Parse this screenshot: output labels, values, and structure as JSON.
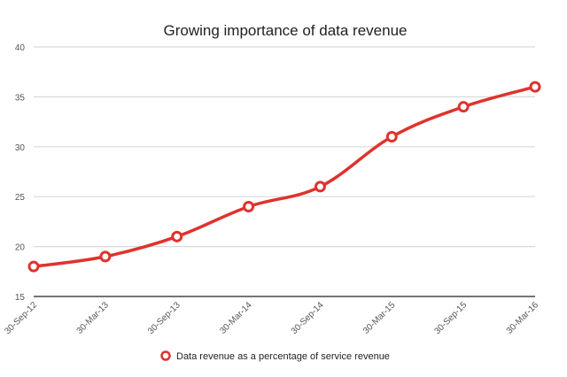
{
  "chart_data": {
    "type": "line",
    "title": "Growing importance of data revenue",
    "xlabel": "",
    "ylabel": "",
    "categories": [
      "30-Sep-12",
      "30-Mar-13",
      "30-Sep-13",
      "30-Mar-14",
      "30-Sep-14",
      "30-Mar-15",
      "30-Sep-15",
      "30-Mar-16"
    ],
    "series": [
      {
        "name": "Data revenue as a percentage of service revenue",
        "values": [
          18,
          19,
          21,
          24,
          26,
          31,
          34,
          36
        ],
        "color": "#e0322d"
      }
    ],
    "ylim": [
      15,
      40
    ],
    "yticks": [
      "15",
      "20",
      "25",
      "30",
      "35",
      "40"
    ],
    "grid": true,
    "legend": "bottom-center"
  }
}
